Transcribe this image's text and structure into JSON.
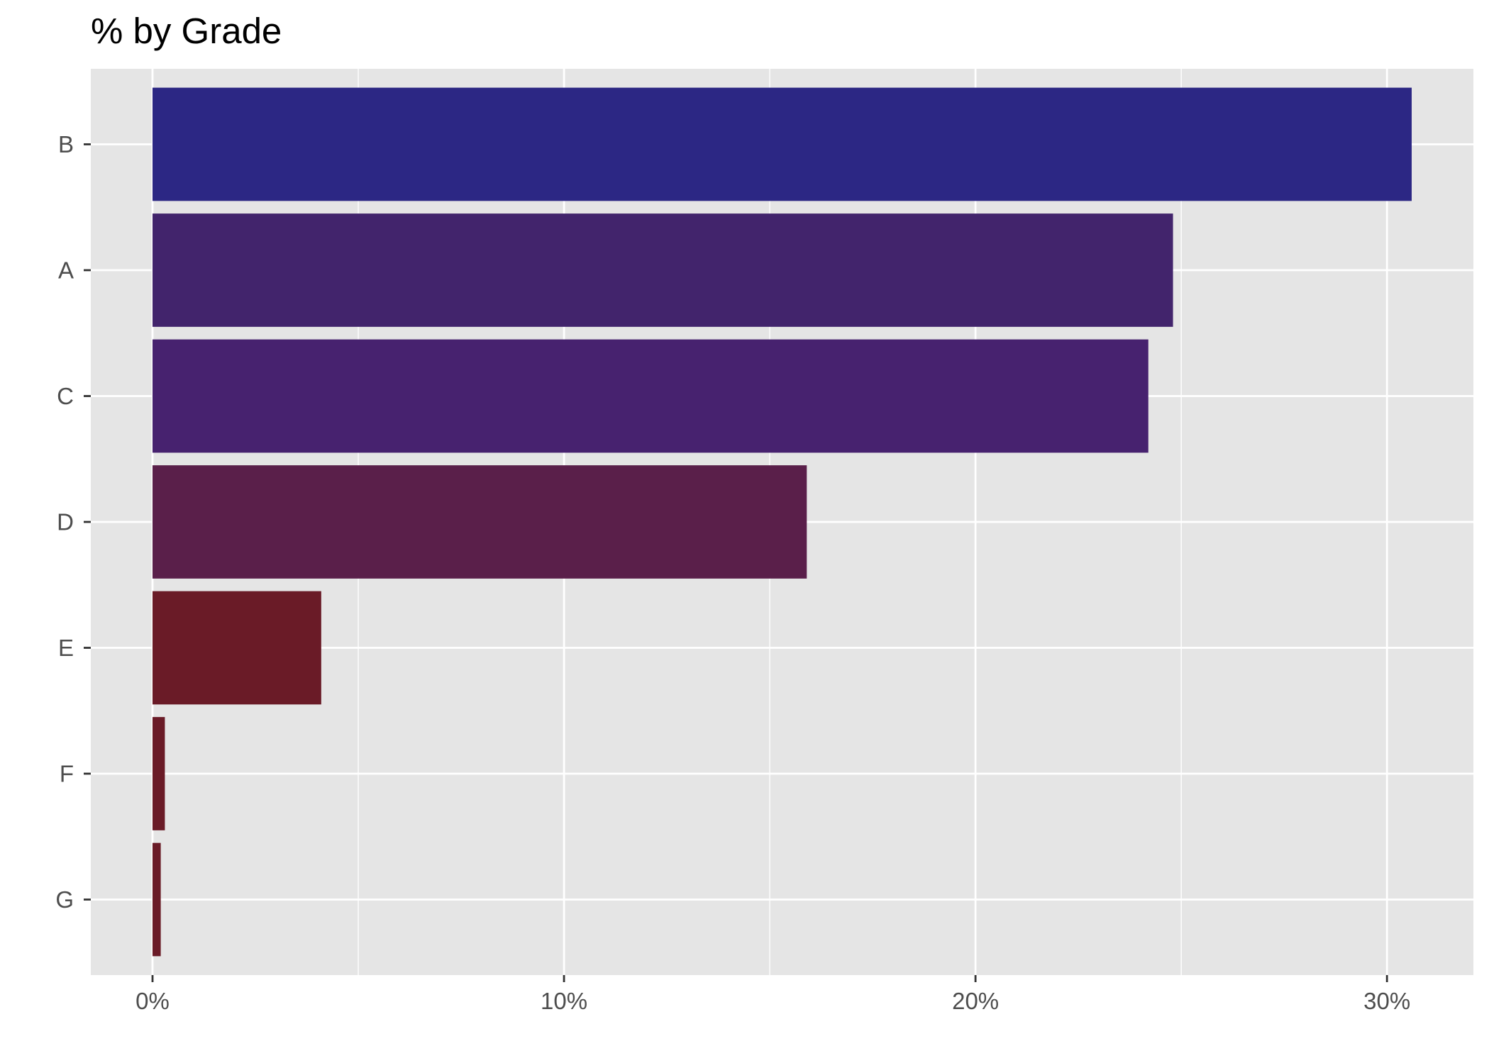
{
  "chart_data": {
    "type": "bar",
    "orientation": "horizontal",
    "title": "% by Grade",
    "xlabel": "",
    "ylabel": "",
    "categories": [
      "B",
      "A",
      "C",
      "D",
      "E",
      "F",
      "G"
    ],
    "values": [
      30.6,
      24.8,
      24.2,
      15.9,
      4.1,
      0.3,
      0.2
    ],
    "value_unit": "%",
    "x_ticks": [
      0,
      10,
      20,
      30
    ],
    "x_tick_labels": [
      "0%",
      "10%",
      "20%",
      "30%"
    ],
    "xlim": [
      -1.5,
      32.1
    ],
    "grid": true,
    "legend": "none",
    "colors": [
      "#2c2784",
      "#42246c",
      "#47226f",
      "#5a1f4a",
      "#6a1b27",
      "#6a1b27",
      "#6a1b27"
    ],
    "background": "#e5e5e5",
    "gridline_color": "#ffffff"
  }
}
